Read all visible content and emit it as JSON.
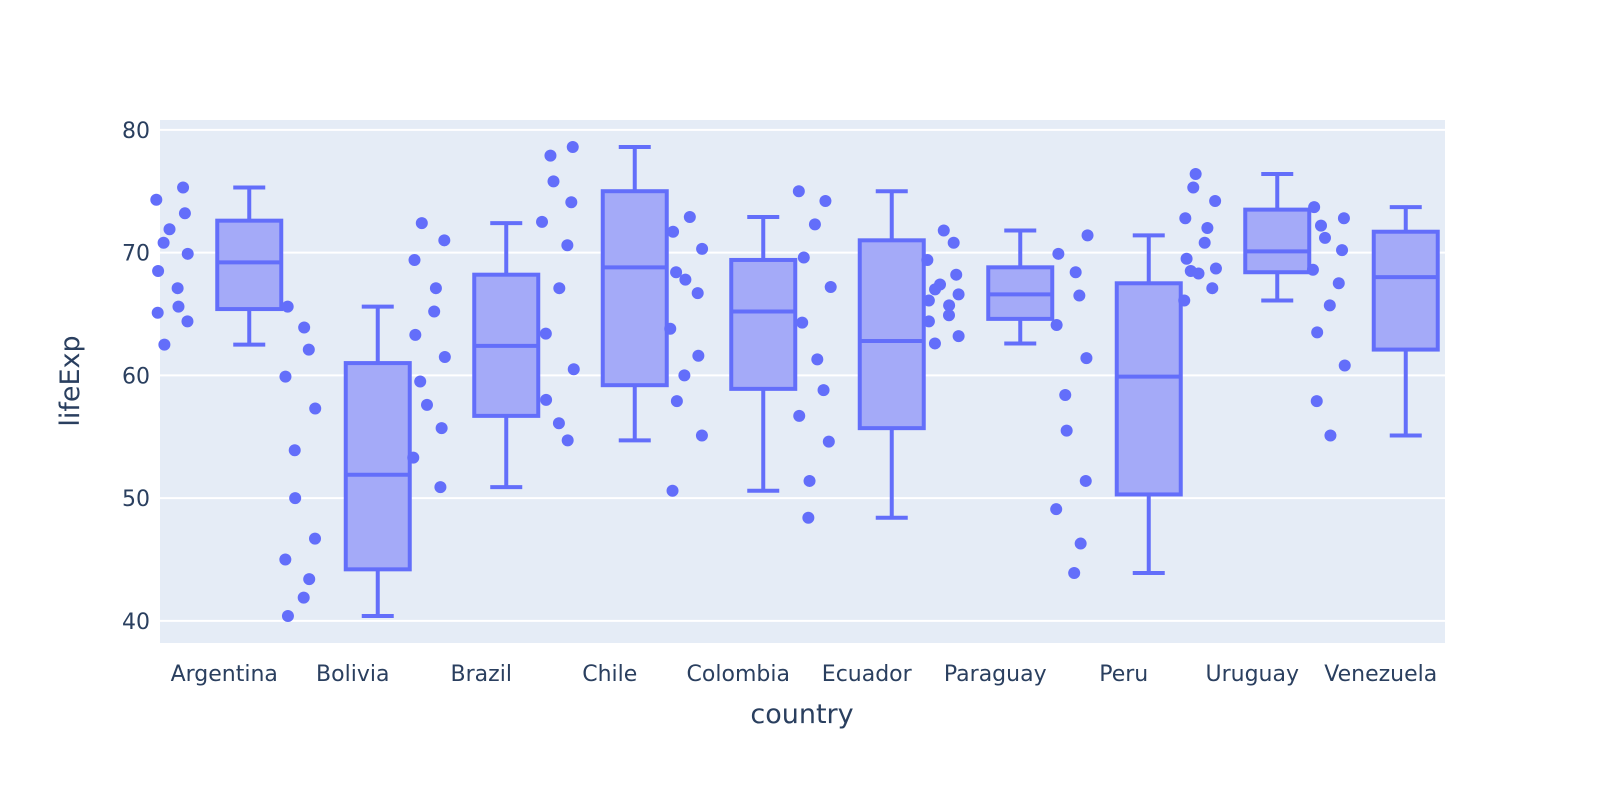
{
  "chart_data": {
    "type": "box",
    "xlabel": "country",
    "ylabel": "lifeExp",
    "ylim": [
      38.2,
      80.8
    ],
    "yticks": [
      40,
      50,
      60,
      70,
      80
    ],
    "grid": true,
    "colors": {
      "plot_bg": "#e5ecf6",
      "grid": "#ffffff",
      "box_line": "#636efa",
      "box_fill": "#a4aaf8",
      "text": "#2a3f5f"
    },
    "categories": [
      "Argentina",
      "Bolivia",
      "Brazil",
      "Chile",
      "Colombia",
      "Ecuador",
      "Paraguay",
      "Peru",
      "Uruguay",
      "Venezuela"
    ],
    "boxes": [
      {
        "name": "Argentina",
        "min": 62.5,
        "q1": 65.4,
        "median": 69.2,
        "q3": 72.6,
        "max": 75.3,
        "points": [
          75.3,
          74.3,
          73.2,
          71.9,
          70.8,
          69.9,
          68.5,
          67.1,
          65.6,
          65.1,
          64.4,
          62.5
        ]
      },
      {
        "name": "Bolivia",
        "min": 40.4,
        "q1": 44.2,
        "median": 51.9,
        "q3": 61.0,
        "max": 65.6,
        "points": [
          65.6,
          63.9,
          62.1,
          59.9,
          57.3,
          53.9,
          50.0,
          46.7,
          45.0,
          43.4,
          41.9,
          40.4
        ]
      },
      {
        "name": "Brazil",
        "min": 50.9,
        "q1": 56.7,
        "median": 62.4,
        "q3": 68.2,
        "max": 72.4,
        "points": [
          72.4,
          71.0,
          69.4,
          67.1,
          65.2,
          63.3,
          61.5,
          59.5,
          57.6,
          55.7,
          53.3,
          50.9
        ]
      },
      {
        "name": "Chile",
        "min": 54.7,
        "q1": 59.2,
        "median": 68.8,
        "q3": 75.0,
        "max": 78.6,
        "points": [
          78.6,
          77.9,
          75.8,
          74.1,
          72.5,
          70.6,
          67.1,
          63.4,
          60.5,
          58.0,
          56.1,
          54.7
        ]
      },
      {
        "name": "Colombia",
        "min": 50.6,
        "q1": 58.9,
        "median": 65.2,
        "q3": 69.4,
        "max": 72.9,
        "points": [
          72.9,
          71.7,
          70.3,
          68.4,
          67.8,
          66.7,
          63.8,
          61.6,
          60.0,
          57.9,
          55.1,
          50.6
        ]
      },
      {
        "name": "Ecuador",
        "min": 48.4,
        "q1": 55.7,
        "median": 62.8,
        "q3": 71.0,
        "max": 75.0,
        "points": [
          75.0,
          74.2,
          72.3,
          69.6,
          67.2,
          64.3,
          61.3,
          58.8,
          56.7,
          54.6,
          51.4,
          48.4
        ]
      },
      {
        "name": "Paraguay",
        "min": 62.6,
        "q1": 64.6,
        "median": 66.6,
        "q3": 68.8,
        "max": 71.8,
        "points": [
          71.8,
          70.8,
          69.4,
          68.2,
          67.4,
          67.0,
          66.6,
          66.1,
          65.7,
          64.9,
          64.4,
          63.2,
          62.6
        ]
      },
      {
        "name": "Peru",
        "min": 43.9,
        "q1": 50.3,
        "median": 59.9,
        "q3": 67.5,
        "max": 71.4,
        "points": [
          71.4,
          69.9,
          68.4,
          66.5,
          64.1,
          61.4,
          58.4,
          55.5,
          51.4,
          49.1,
          46.3,
          43.9
        ]
      },
      {
        "name": "Uruguay",
        "min": 66.1,
        "q1": 68.4,
        "median": 70.1,
        "q3": 73.5,
        "max": 76.4,
        "points": [
          76.4,
          75.3,
          74.2,
          72.8,
          72.0,
          70.8,
          69.5,
          68.7,
          68.5,
          68.3,
          67.1,
          66.1
        ]
      },
      {
        "name": "Venezuela",
        "min": 55.1,
        "q1": 62.1,
        "median": 68.0,
        "q3": 71.7,
        "max": 73.7,
        "points": [
          73.7,
          72.8,
          72.2,
          71.2,
          70.2,
          68.6,
          67.5,
          65.7,
          63.5,
          60.8,
          57.9,
          55.1
        ]
      }
    ]
  }
}
